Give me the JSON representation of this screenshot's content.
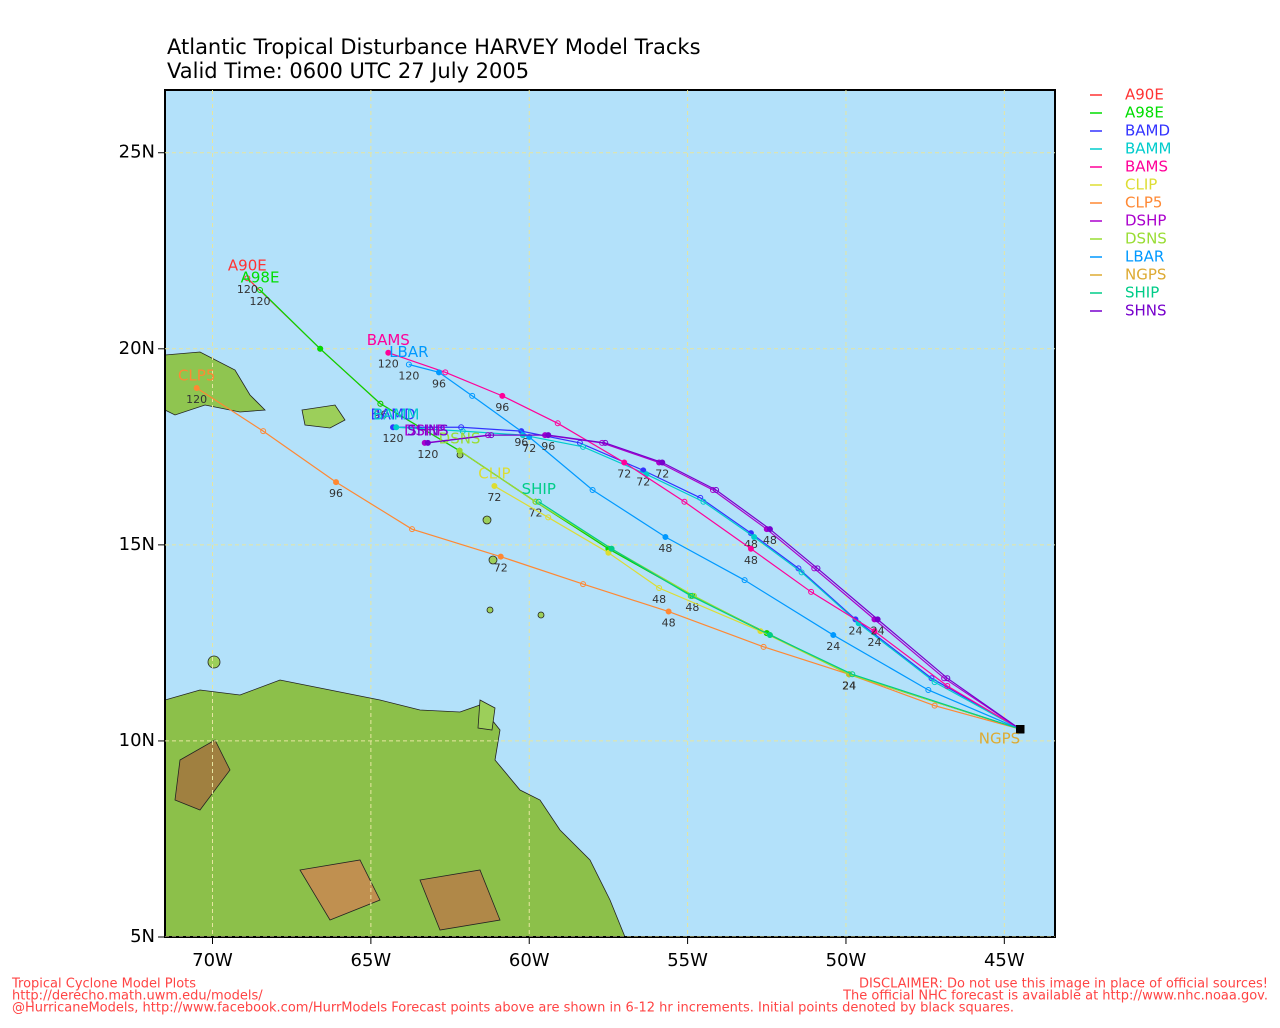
{
  "chart_data": {
    "type": "line",
    "title": "Atlantic Tropical Disturbance HARVEY Model Tracks",
    "subtitle": "Valid Time: 0600 UTC 27 July 2005",
    "xlim": [
      -71.5,
      -43.4
    ],
    "ylim": [
      5,
      26.6
    ],
    "xticks": [
      {
        "value": -70,
        "label": "70W"
      },
      {
        "value": -65,
        "label": "65W"
      },
      {
        "value": -60,
        "label": "60W"
      },
      {
        "value": -55,
        "label": "55W"
      },
      {
        "value": -50,
        "label": "50W"
      },
      {
        "value": -45,
        "label": "45W"
      }
    ],
    "yticks": [
      {
        "value": 5,
        "label": "5N"
      },
      {
        "value": 10,
        "label": "10N"
      },
      {
        "value": 15,
        "label": "15N"
      },
      {
        "value": 20,
        "label": "20N"
      },
      {
        "value": 25,
        "label": "25N"
      }
    ],
    "grid": true,
    "series": [
      {
        "name": "A90E",
        "color": "#ff3333",
        "x": [
          -44.5,
          -49.9,
          -52.5,
          -54.85,
          -57.5,
          -59.8,
          -62.2,
          -64.7,
          -66.6,
          -68.9
        ],
        "values": [
          10.3,
          11.7,
          12.75,
          13.7,
          14.9,
          16.1,
          17.4,
          18.6,
          20.0,
          21.8
        ],
        "point_labels": [
          null,
          null,
          null,
          null,
          null,
          null,
          null,
          null,
          null,
          120
        ]
      },
      {
        "name": "A98E",
        "color": "#00dd00",
        "x": [
          -44.5,
          -49.9,
          -52.5,
          -54.85,
          -57.5,
          -59.8,
          -62.2,
          -64.7,
          -66.6,
          -68.5
        ],
        "values": [
          10.3,
          11.7,
          12.75,
          13.7,
          14.9,
          16.1,
          17.4,
          18.6,
          20.0,
          21.5
        ],
        "point_labels": [
          null,
          24,
          null,
          48,
          null,
          72,
          null,
          96,
          null,
          120
        ]
      },
      {
        "name": "BAMD",
        "color": "#3333ff",
        "x": [
          -44.5,
          -47.3,
          -49.7,
          -51.5,
          -53.0,
          -54.6,
          -56.4,
          -58.4,
          -60.25,
          -62.15,
          -64.3
        ],
        "values": [
          10.3,
          11.6,
          13.1,
          14.4,
          15.3,
          16.2,
          16.9,
          17.6,
          17.9,
          18.0,
          18.0
        ],
        "point_labels": [
          null,
          null,
          24,
          null,
          48,
          null,
          72,
          null,
          96,
          null,
          120
        ]
      },
      {
        "name": "BAMM",
        "color": "#00cccc",
        "x": [
          -44.5,
          -47.2,
          -49.6,
          -51.4,
          -52.9,
          -54.5,
          -56.3,
          -58.3,
          -60.2,
          -62.1,
          -64.2
        ],
        "values": [
          10.3,
          11.5,
          13.0,
          14.3,
          15.2,
          16.1,
          16.8,
          17.5,
          17.8,
          17.9,
          18.0
        ]
      },
      {
        "name": "BAMS",
        "color": "#ff0099",
        "x": [
          -44.5,
          -46.8,
          -49.1,
          -51.1,
          -53.0,
          -55.1,
          -57.0,
          -59.1,
          -60.85,
          -62.65,
          -64.45
        ],
        "values": [
          10.3,
          11.4,
          12.8,
          13.8,
          14.9,
          16.1,
          17.1,
          18.1,
          18.8,
          19.4,
          19.9
        ],
        "point_labels": [
          null,
          null,
          24,
          null,
          48,
          null,
          72,
          null,
          96,
          null,
          120
        ]
      },
      {
        "name": "CLIP",
        "color": "#dddd33",
        "x": [
          -44.5,
          -49.9,
          -52.7,
          -55.9,
          -57.5,
          -59.4,
          -61.1
        ],
        "values": [
          10.3,
          11.7,
          12.8,
          13.9,
          14.8,
          15.7,
          16.5
        ],
        "point_labels": [
          null,
          24,
          null,
          48,
          null,
          null,
          72
        ]
      },
      {
        "name": "CLP5",
        "color": "#ff8833",
        "x": [
          -44.5,
          -47.2,
          -49.9,
          -52.6,
          -55.6,
          -58.3,
          -60.9,
          -63.7,
          -66.1,
          -68.4,
          -70.5
        ],
        "values": [
          10.3,
          10.9,
          11.7,
          12.4,
          13.3,
          14.0,
          14.7,
          15.4,
          16.6,
          17.9,
          19.0
        ],
        "point_labels": [
          null,
          null,
          24,
          null,
          48,
          null,
          72,
          null,
          96,
          null,
          120
        ]
      },
      {
        "name": "DSHP",
        "color": "#aa00cc",
        "x": [
          -44.5,
          -46.9,
          -49.1,
          -51.0,
          -52.5,
          -54.2,
          -55.9,
          -57.7,
          -59.5,
          -61.3,
          -63.3
        ],
        "values": [
          10.3,
          11.6,
          13.1,
          14.4,
          15.4,
          16.4,
          17.1,
          17.6,
          17.8,
          17.8,
          17.6
        ]
      },
      {
        "name": "DSNS",
        "color": "#99dd33",
        "x": [
          -44.5,
          -49.9,
          -52.4,
          -54.8,
          -57.4,
          -59.8,
          -62.2
        ],
        "values": [
          10.3,
          11.7,
          12.7,
          13.7,
          14.9,
          16.1,
          17.4
        ]
      },
      {
        "name": "LBAR",
        "color": "#0099ff",
        "x": [
          -44.5,
          -47.4,
          -50.4,
          -53.2,
          -55.7,
          -58.0,
          -60.0,
          -61.8,
          -62.85,
          -63.8
        ],
        "values": [
          10.3,
          11.3,
          12.7,
          14.1,
          15.2,
          16.4,
          17.75,
          18.8,
          19.4,
          19.6
        ],
        "point_labels": [
          null,
          null,
          24,
          null,
          48,
          null,
          72,
          null,
          96,
          120
        ]
      },
      {
        "name": "NGPS",
        "color": "#ddaa33",
        "x": [
          -44.5
        ],
        "values": [
          10.3
        ]
      },
      {
        "name": "SHIP",
        "color": "#00cc88",
        "x": [
          -44.5,
          -49.8,
          -52.4,
          -54.9,
          -57.4,
          -59.7
        ],
        "values": [
          10.3,
          11.7,
          12.7,
          13.7,
          14.9,
          16.1
        ]
      },
      {
        "name": "SHNS",
        "color": "#7700cc",
        "x": [
          -44.5,
          -46.8,
          -49.0,
          -50.9,
          -52.4,
          -54.1,
          -55.8,
          -57.6,
          -59.4,
          -61.2,
          -63.2
        ],
        "values": [
          10.3,
          11.6,
          13.1,
          14.4,
          15.4,
          16.4,
          17.1,
          17.6,
          17.8,
          17.8,
          17.6
        ],
        "point_labels": [
          null,
          null,
          24,
          null,
          48,
          null,
          72,
          null,
          96,
          null,
          120
        ]
      }
    ],
    "footer_left": [
      "Tropical Cyclone Model Plots",
      "http://derecho.math.uwm.edu/models/",
      "@HurricaneModels, http://www.facebook.com/HurrModels  Forecast points above are shown in 6-12 hr increments. Initial points denoted by black squares."
    ],
    "footer_right": [
      "DISCLAIMER: Do not use this image in place of official sources!",
      "The official NHC forecast is available at http://www.nhc.noaa.gov."
    ]
  }
}
